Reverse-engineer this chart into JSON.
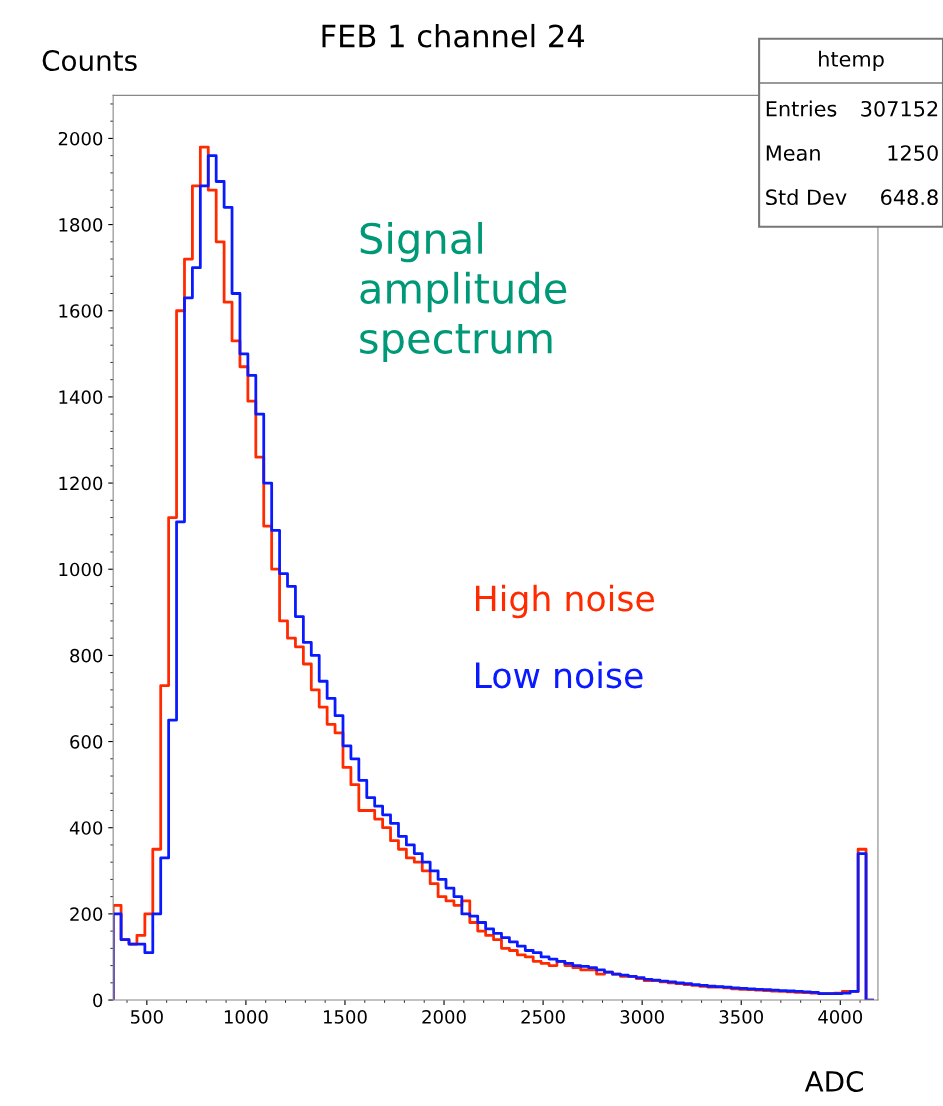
{
  "chart_data": {
    "type": "histogram",
    "title": "FEB 1 channel 24",
    "xlabel": "ADC",
    "ylabel": "Counts",
    "annotations": [
      "Signal\namplitude\nspectrum",
      "htemp",
      "Entries",
      "307152",
      "Mean",
      "1250",
      "Std Dev",
      "648.8"
    ],
    "bins": [
      330,
      370,
      410,
      450,
      490,
      530,
      570,
      610,
      650,
      690,
      730,
      770,
      810,
      850,
      890,
      930,
      970,
      1010,
      1050,
      1090,
      1130,
      1170,
      1210,
      1250,
      1290,
      1330,
      1370,
      1410,
      1450,
      1490,
      1530,
      1570,
      1610,
      1650,
      1690,
      1730,
      1770,
      1810,
      1850,
      1890,
      1930,
      1970,
      2010,
      2050,
      2090,
      2130,
      2170,
      2210,
      2250,
      2290,
      2330,
      2370,
      2410,
      2450,
      2490,
      2530,
      2570,
      2610,
      2650,
      2690,
      2730,
      2770,
      2810,
      2850,
      2890,
      2930,
      2970,
      3010,
      3050,
      3090,
      3130,
      3170,
      3210,
      3250,
      3290,
      3330,
      3370,
      3410,
      3450,
      3490,
      3530,
      3570,
      3610,
      3650,
      3690,
      3730,
      3770,
      3810,
      3850,
      3890,
      3930,
      3970,
      4010,
      4050,
      4090,
      4130,
      4170
    ],
    "series": [
      {
        "name": "High noise",
        "color": "#ff2a00",
        "values": [
          220,
          140,
          130,
          150,
          200,
          350,
          730,
          1120,
          1600,
          1720,
          1890,
          1980,
          1880,
          1760,
          1620,
          1530,
          1470,
          1390,
          1260,
          1100,
          1000,
          880,
          840,
          820,
          780,
          720,
          680,
          640,
          620,
          540,
          500,
          440,
          440,
          420,
          400,
          370,
          350,
          330,
          320,
          300,
          270,
          240,
          230,
          220,
          230,
          180,
          160,
          150,
          140,
          120,
          115,
          105,
          100,
          90,
          85,
          80,
          90,
          80,
          75,
          70,
          70,
          60,
          65,
          60,
          55,
          55,
          50,
          45,
          45,
          42,
          40,
          38,
          36,
          34,
          32,
          30,
          30,
          28,
          26,
          25,
          24,
          23,
          22,
          21,
          20,
          19,
          18,
          17,
          16,
          15,
          15,
          16,
          20,
          20,
          350,
          0
        ]
      },
      {
        "name": "Low noise",
        "color": "#0a1aff",
        "values": [
          200,
          140,
          130,
          130,
          110,
          200,
          330,
          650,
          1110,
          1630,
          1700,
          1890,
          1960,
          1900,
          1840,
          1640,
          1500,
          1450,
          1360,
          1200,
          1090,
          990,
          960,
          890,
          830,
          800,
          740,
          700,
          660,
          590,
          560,
          510,
          470,
          450,
          430,
          410,
          380,
          360,
          340,
          320,
          300,
          280,
          260,
          240,
          200,
          195,
          180,
          165,
          155,
          145,
          135,
          125,
          115,
          110,
          100,
          95,
          90,
          85,
          80,
          78,
          75,
          70,
          65,
          60,
          58,
          55,
          52,
          48,
          46,
          44,
          42,
          40,
          38,
          36,
          34,
          32,
          31,
          30,
          28,
          27,
          26,
          25,
          24,
          23,
          22,
          21,
          20,
          19,
          18,
          15,
          15,
          15,
          16,
          20,
          340,
          0
        ]
      }
    ],
    "xlim": [
      330,
      4190
    ],
    "xticks": [
      500,
      1000,
      1500,
      2000,
      2500,
      3000,
      3500,
      4000
    ],
    "ylim": [
      0,
      2100
    ],
    "yticks": [
      0,
      200,
      400,
      600,
      800,
      1000,
      1200,
      1400,
      1600,
      1800,
      2000
    ]
  }
}
